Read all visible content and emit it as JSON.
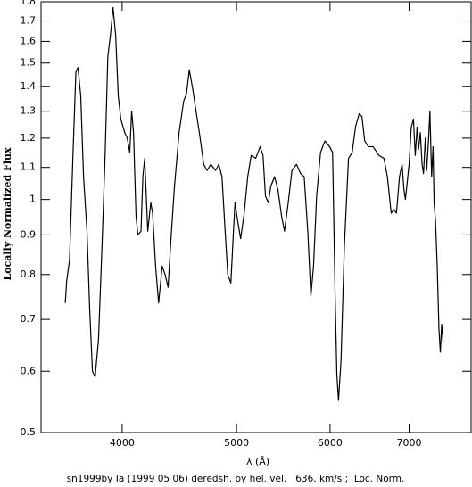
{
  "chart_data": {
    "type": "line",
    "xlabel": "λ (Å)",
    "ylabel": "Locally Normalized Flux",
    "caption": "sn1999by Ia (1999 05 06) deredsh. by hel. vel.   636. km/s ;  Loc. Norm.",
    "xscale": "log",
    "yscale": "log",
    "xlim": [
      3415,
      7900
    ],
    "ylim": [
      0.5,
      1.8
    ],
    "xticks": [
      4000,
      5000,
      6000,
      7000
    ],
    "yticks": [
      0.5,
      0.6,
      0.7,
      0.8,
      0.9,
      1,
      1.1,
      1.2,
      1.3,
      1.4,
      1.5,
      1.6,
      1.7,
      1.8
    ],
    "color": "#000000",
    "x": [
      3580,
      3590,
      3610,
      3635,
      3655,
      3670,
      3690,
      3710,
      3735,
      3755,
      3775,
      3795,
      3820,
      3850,
      3870,
      3890,
      3910,
      3930,
      3950,
      3970,
      3990,
      4020,
      4040,
      4060,
      4075,
      4090,
      4110,
      4125,
      4150,
      4165,
      4180,
      4205,
      4230,
      4245,
      4270,
      4295,
      4325,
      4350,
      4375,
      4400,
      4430,
      4470,
      4510,
      4535,
      4560,
      4590,
      4620,
      4650,
      4690,
      4720,
      4755,
      4800,
      4830,
      4860,
      4890,
      4915,
      4945,
      4970,
      4985,
      5010,
      5040,
      5075,
      5110,
      5145,
      5190,
      5235,
      5265,
      5290,
      5320,
      5345,
      5385,
      5420,
      5460,
      5490,
      5530,
      5570,
      5620,
      5665,
      5705,
      5745,
      5780,
      5810,
      5845,
      5890,
      5940,
      5995,
      6030,
      6060,
      6080,
      6100,
      6130,
      6170,
      6220,
      6265,
      6305,
      6350,
      6385,
      6420,
      6465,
      6525,
      6600,
      6665,
      6710,
      6760,
      6795,
      6830,
      6870,
      6905,
      6930,
      6950,
      7000,
      7030,
      7060,
      7085,
      7110,
      7130,
      7155,
      7180,
      7200,
      7225,
      7245,
      7270,
      7290,
      7315,
      7335,
      7350,
      7370,
      7395,
      7420,
      7440,
      7460,
      7480
    ],
    "values": [
      0.735,
      0.785,
      0.835,
      1.15,
      1.46,
      1.48,
      1.36,
      1.07,
      0.91,
      0.72,
      0.6,
      0.59,
      0.66,
      0.91,
      1.15,
      1.53,
      1.63,
      1.77,
      1.63,
      1.36,
      1.27,
      1.22,
      1.2,
      1.15,
      1.3,
      1.22,
      0.95,
      0.9,
      0.91,
      1.07,
      1.13,
      0.91,
      0.99,
      0.96,
      0.82,
      0.735,
      0.82,
      0.8,
      0.77,
      0.89,
      1.04,
      1.22,
      1.34,
      1.37,
      1.47,
      1.39,
      1.3,
      1.22,
      1.11,
      1.09,
      1.11,
      1.09,
      1.11,
      1.07,
      0.91,
      0.8,
      0.78,
      0.91,
      0.99,
      0.94,
      0.89,
      0.96,
      1.07,
      1.14,
      1.13,
      1.17,
      1.14,
      1.01,
      0.99,
      1.04,
      1.07,
      1.03,
      0.95,
      0.91,
      0.99,
      1.09,
      1.11,
      1.08,
      1.07,
      0.91,
      0.75,
      0.82,
      1.01,
      1.15,
      1.19,
      1.17,
      1.15,
      0.75,
      0.595,
      0.55,
      0.62,
      0.87,
      1.13,
      1.15,
      1.24,
      1.29,
      1.28,
      1.19,
      1.17,
      1.17,
      1.14,
      1.13,
      1.07,
      0.96,
      0.97,
      0.96,
      1.07,
      1.11,
      1.03,
      1.0,
      1.11,
      1.24,
      1.27,
      1.14,
      1.24,
      1.16,
      1.22,
      1.11,
      1.08,
      1.2,
      1.09,
      1.19,
      1.3,
      1.07,
      1.17,
      0.99,
      0.94,
      0.82,
      0.68,
      0.635,
      0.69,
      0.655
    ]
  }
}
